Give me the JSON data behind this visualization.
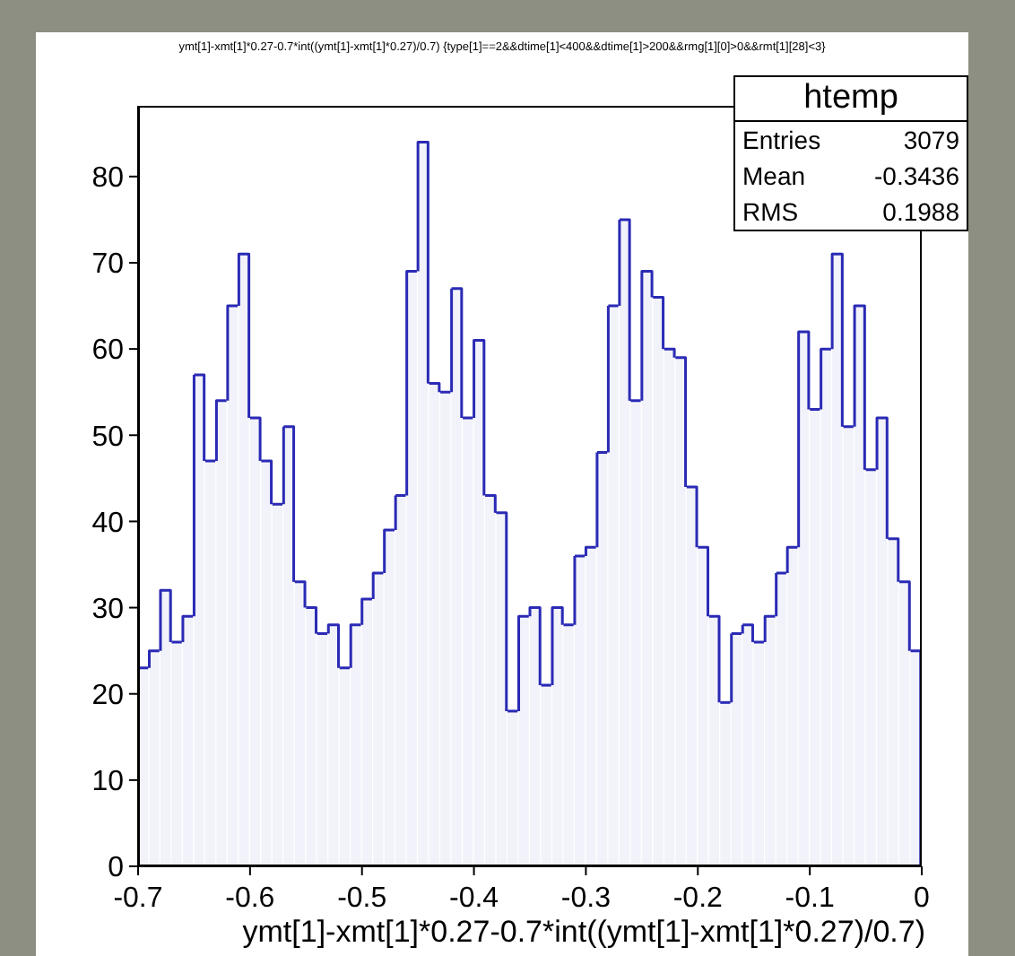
{
  "chart_data": {
    "type": "histogram",
    "title": "ymt[1]-xmt[1]*0.27-0.7*int((ymt[1]-xmt[1]*0.27)/0.7) {type[1]==2&&dtime[1]<400&&dtime[1]>200&&rmg[1][0]>0&&rmt[1][28]<3}",
    "xlabel": "ymt[1]-xmt[1]*0.27-0.7*int((ymt[1]-xmt[1]*0.27)/0.7)",
    "bins": [
      -0.7,
      -0.69,
      -0.68,
      -0.67,
      -0.66,
      -0.65,
      -0.64,
      -0.63,
      -0.62,
      -0.61,
      -0.6,
      -0.59,
      -0.58,
      -0.57,
      -0.56,
      -0.55,
      -0.54,
      -0.53,
      -0.52,
      -0.51,
      -0.5,
      -0.49,
      -0.48,
      -0.47,
      -0.46,
      -0.45,
      -0.44,
      -0.43,
      -0.42,
      -0.41,
      -0.4,
      -0.39,
      -0.38,
      -0.37,
      -0.36,
      -0.35,
      -0.34,
      -0.33,
      -0.32,
      -0.31,
      -0.3,
      -0.29,
      -0.28,
      -0.27,
      -0.26,
      -0.25,
      -0.24,
      -0.23,
      -0.22,
      -0.21,
      -0.2,
      -0.19,
      -0.18,
      -0.17,
      -0.16,
      -0.15,
      -0.14,
      -0.13,
      -0.12,
      -0.11,
      -0.1,
      -0.09,
      -0.08,
      -0.07,
      -0.06,
      -0.05,
      -0.04,
      -0.03,
      -0.02,
      -0.01,
      0
    ],
    "values": [
      23,
      25,
      32,
      26,
      29,
      57,
      47,
      54,
      65,
      71,
      52,
      47,
      42,
      51,
      33,
      30,
      27,
      28,
      23,
      28,
      31,
      34,
      39,
      43,
      69,
      84,
      56,
      55,
      67,
      52,
      61,
      43,
      41,
      18,
      29,
      30,
      21,
      30,
      28,
      36,
      37,
      48,
      65,
      75,
      54,
      69,
      66,
      60,
      59,
      44,
      37,
      29,
      19,
      27,
      28,
      26,
      29,
      34,
      37,
      62,
      53,
      60,
      71,
      51,
      65,
      46,
      52,
      38,
      33,
      25
    ],
    "color": "#2a2ab5",
    "xlim": [
      -0.7,
      0
    ],
    "xticks": [
      -0.7,
      -0.6,
      -0.5,
      -0.4,
      -0.3,
      -0.2,
      -0.1,
      0
    ],
    "ylim": [
      0,
      88.2
    ],
    "yticks": [
      0,
      10,
      20,
      30,
      40,
      50,
      60,
      70,
      80
    ],
    "annotations": [
      "htemp",
      "Entries 3079",
      "Mean -0.3436",
      "RMS 0.1988"
    ],
    "legend": false,
    "grid": false
  }
}
